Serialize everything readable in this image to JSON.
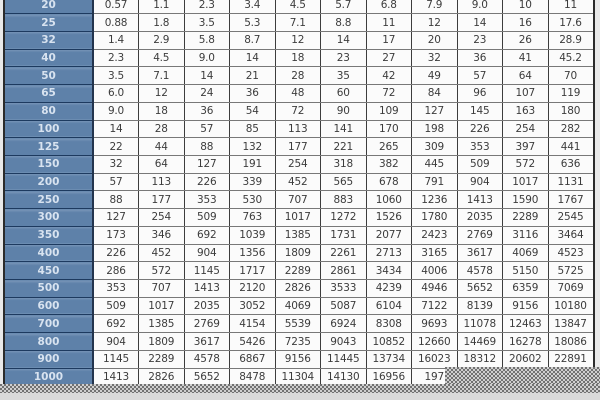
{
  "chart_data": {
    "type": "table",
    "title": "",
    "notes": "Pipe size vs flow capacity table; column header row is cropped out of view at top; bottom-right corner of last row is obscured by gray dotted background",
    "row_header_values": [
      "20",
      "25",
      "32",
      "40",
      "50",
      "65",
      "80",
      "100",
      "125",
      "150",
      "200",
      "250",
      "300",
      "350",
      "400",
      "450",
      "500",
      "600",
      "700",
      "800",
      "900",
      "1000"
    ],
    "rows": [
      {
        "label": "20",
        "values": [
          "0.57",
          "1.1",
          "2.3",
          "3.4",
          "4.5",
          "5.7",
          "6.8",
          "7.9",
          "9.0",
          "10",
          "11"
        ]
      },
      {
        "label": "25",
        "values": [
          "0.88",
          "1.8",
          "3.5",
          "5.3",
          "7.1",
          "8.8",
          "11",
          "12",
          "14",
          "16",
          "17.6"
        ]
      },
      {
        "label": "32",
        "values": [
          "1.4",
          "2.9",
          "5.8",
          "8.7",
          "12",
          "14",
          "17",
          "20",
          "23",
          "26",
          "28.9"
        ]
      },
      {
        "label": "40",
        "values": [
          "2.3",
          "4.5",
          "9.0",
          "14",
          "18",
          "23",
          "27",
          "32",
          "36",
          "41",
          "45.2"
        ]
      },
      {
        "label": "50",
        "values": [
          "3.5",
          "7.1",
          "14",
          "21",
          "28",
          "35",
          "42",
          "49",
          "57",
          "64",
          "70"
        ]
      },
      {
        "label": "65",
        "values": [
          "6.0",
          "12",
          "24",
          "36",
          "48",
          "60",
          "72",
          "84",
          "96",
          "107",
          "119"
        ]
      },
      {
        "label": "80",
        "values": [
          "9.0",
          "18",
          "36",
          "54",
          "72",
          "90",
          "109",
          "127",
          "145",
          "163",
          "180"
        ]
      },
      {
        "label": "100",
        "values": [
          "14",
          "28",
          "57",
          "85",
          "113",
          "141",
          "170",
          "198",
          "226",
          "254",
          "282"
        ]
      },
      {
        "label": "125",
        "values": [
          "22",
          "44",
          "88",
          "132",
          "177",
          "221",
          "265",
          "309",
          "353",
          "397",
          "441"
        ]
      },
      {
        "label": "150",
        "values": [
          "32",
          "64",
          "127",
          "191",
          "254",
          "318",
          "382",
          "445",
          "509",
          "572",
          "636"
        ]
      },
      {
        "label": "200",
        "values": [
          "57",
          "113",
          "226",
          "339",
          "452",
          "565",
          "678",
          "791",
          "904",
          "1017",
          "1131"
        ]
      },
      {
        "label": "250",
        "values": [
          "88",
          "177",
          "353",
          "530",
          "707",
          "883",
          "1060",
          "1236",
          "1413",
          "1590",
          "1767"
        ]
      },
      {
        "label": "300",
        "values": [
          "127",
          "254",
          "509",
          "763",
          "1017",
          "1272",
          "1526",
          "1780",
          "2035",
          "2289",
          "2545"
        ]
      },
      {
        "label": "350",
        "values": [
          "173",
          "346",
          "692",
          "1039",
          "1385",
          "1731",
          "2077",
          "2423",
          "2769",
          "3116",
          "3464"
        ]
      },
      {
        "label": "400",
        "values": [
          "226",
          "452",
          "904",
          "1356",
          "1809",
          "2261",
          "2713",
          "3165",
          "3617",
          "4069",
          "4523"
        ]
      },
      {
        "label": "450",
        "values": [
          "286",
          "572",
          "1145",
          "1717",
          "2289",
          "2861",
          "3434",
          "4006",
          "4578",
          "5150",
          "5725"
        ]
      },
      {
        "label": "500",
        "values": [
          "353",
          "707",
          "1413",
          "2120",
          "2826",
          "3533",
          "4239",
          "4946",
          "5652",
          "6359",
          "7069"
        ]
      },
      {
        "label": "600",
        "values": [
          "509",
          "1017",
          "2035",
          "3052",
          "4069",
          "5087",
          "6104",
          "7122",
          "8139",
          "9156",
          "10180"
        ]
      },
      {
        "label": "700",
        "values": [
          "692",
          "1385",
          "2769",
          "4154",
          "5539",
          "6924",
          "8308",
          "9693",
          "11078",
          "12463",
          "13847"
        ]
      },
      {
        "label": "800",
        "values": [
          "904",
          "1809",
          "3617",
          "5426",
          "7235",
          "9043",
          "10852",
          "12660",
          "14469",
          "16278",
          "18086"
        ]
      },
      {
        "label": "900",
        "values": [
          "1145",
          "2289",
          "4578",
          "6867",
          "9156",
          "11445",
          "13734",
          "16023",
          "18312",
          "20602",
          "22891"
        ]
      },
      {
        "label": "1000",
        "values": [
          "1413",
          "2826",
          "5652",
          "8478",
          "11304",
          "14130",
          "16956",
          "197",
          "",
          "",
          ""
        ]
      }
    ]
  },
  "style": {
    "page_bg": "#e9e9e9",
    "row_header_bg": "#5e81a9",
    "row_header_bg_top": "#7b98ba",
    "row_header_text": "#d8e3f0",
    "row_header_border": "#1d3a5f",
    "cell_bg": "#fbfbfb",
    "cell_text": "#3c3c3c",
    "cell_border_v": "#3d3d3d",
    "cell_border_h": "#787878",
    "table_outline": "#2b2b2b",
    "dots_base": "#cfcfcf",
    "dots_dot": "#5f5f5f",
    "bottom_band": "#d9d9d9"
  }
}
